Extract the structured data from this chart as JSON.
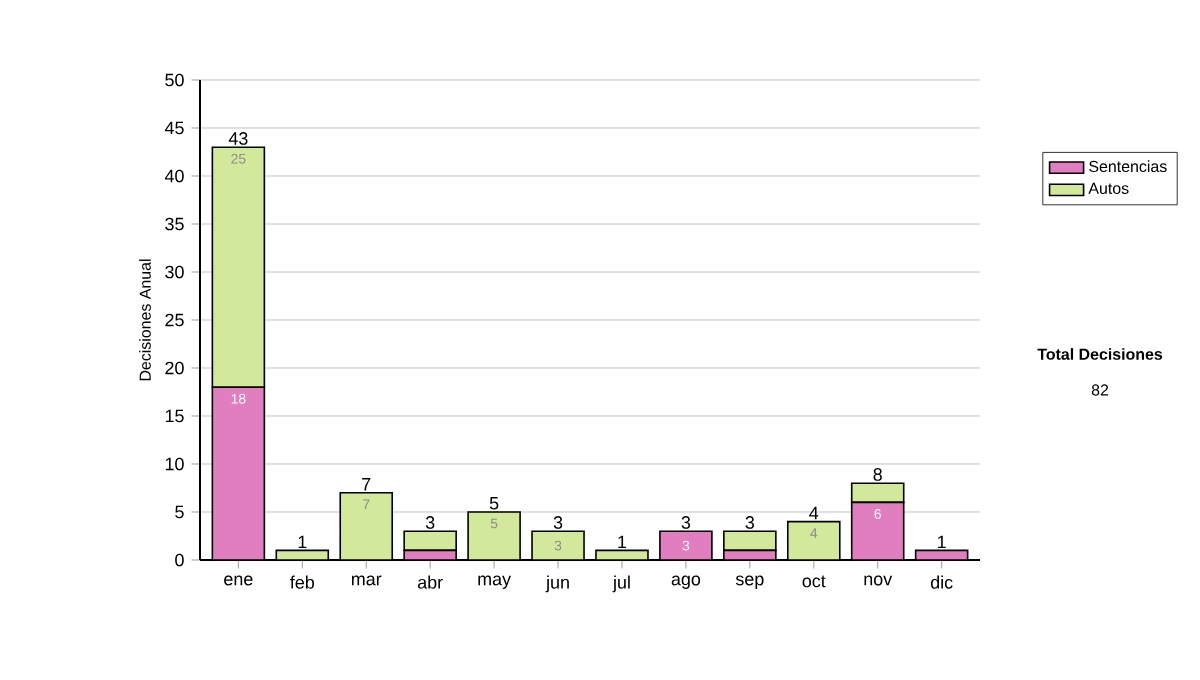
{
  "chart_data": {
    "type": "bar",
    "stacked": true,
    "ylabel": "Decisiones Anual",
    "categories": [
      "ene",
      "feb",
      "mar",
      "abr",
      "may",
      "jun",
      "jul",
      "ago",
      "sep",
      "oct",
      "nov",
      "dic"
    ],
    "series": [
      {
        "name": "Sentencias",
        "color": "#e07ec0",
        "values": [
          18,
          0,
          0,
          1,
          0,
          0,
          0,
          3,
          1,
          0,
          6,
          1
        ],
        "value_labels": [
          "18",
          null,
          null,
          null,
          null,
          null,
          null,
          "3",
          null,
          null,
          "6",
          null
        ]
      },
      {
        "name": "Autos",
        "color": "#d2e89a",
        "values": [
          25,
          1,
          7,
          2,
          5,
          3,
          1,
          0,
          2,
          4,
          2,
          0
        ],
        "value_labels": [
          "25",
          null,
          "7",
          null,
          "5",
          "3",
          null,
          null,
          null,
          "4",
          null,
          null
        ]
      }
    ],
    "totals": [
      "43",
      "1",
      "7",
      "3",
      "5",
      "3",
      "1",
      "3",
      "3",
      "4",
      "8",
      "1"
    ],
    "ylim": [
      0,
      50
    ],
    "yticks": [
      0,
      5,
      10,
      15,
      20,
      25,
      30,
      35,
      40,
      45,
      50
    ],
    "grid": "y",
    "legend": "right",
    "annotations": [
      "Total Decisiones",
      "82"
    ]
  }
}
